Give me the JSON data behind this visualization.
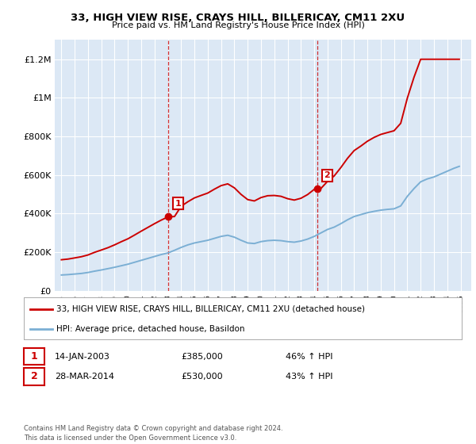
{
  "title": "33, HIGH VIEW RISE, CRAYS HILL, BILLERICAY, CM11 2XU",
  "subtitle": "Price paid vs. HM Land Registry's House Price Index (HPI)",
  "legend_label_red": "33, HIGH VIEW RISE, CRAYS HILL, BILLERICAY, CM11 2XU (detached house)",
  "legend_label_blue": "HPI: Average price, detached house, Basildon",
  "annotation1_label": "1",
  "annotation1_date": "14-JAN-2003",
  "annotation1_price": "£385,000",
  "annotation1_hpi": "46% ↑ HPI",
  "annotation1_year": 2003.04,
  "annotation1_value": 385000,
  "annotation2_label": "2",
  "annotation2_date": "28-MAR-2014",
  "annotation2_price": "£530,000",
  "annotation2_hpi": "43% ↑ HPI",
  "annotation2_year": 2014.23,
  "annotation2_value": 530000,
  "footer": "Contains HM Land Registry data © Crown copyright and database right 2024.\nThis data is licensed under the Open Government Licence v3.0.",
  "plot_bg_color": "#dce8f5",
  "red_color": "#cc0000",
  "blue_color": "#7bafd4",
  "ylim": [
    0,
    1300000
  ],
  "yticks": [
    0,
    200000,
    400000,
    600000,
    800000,
    1000000,
    1200000
  ],
  "ytick_labels": [
    "£0",
    "£200K",
    "£400K",
    "£600K",
    "£800K",
    "£1M",
    "£1.2M"
  ],
  "xmin": 1994.5,
  "xmax": 2025.8
}
